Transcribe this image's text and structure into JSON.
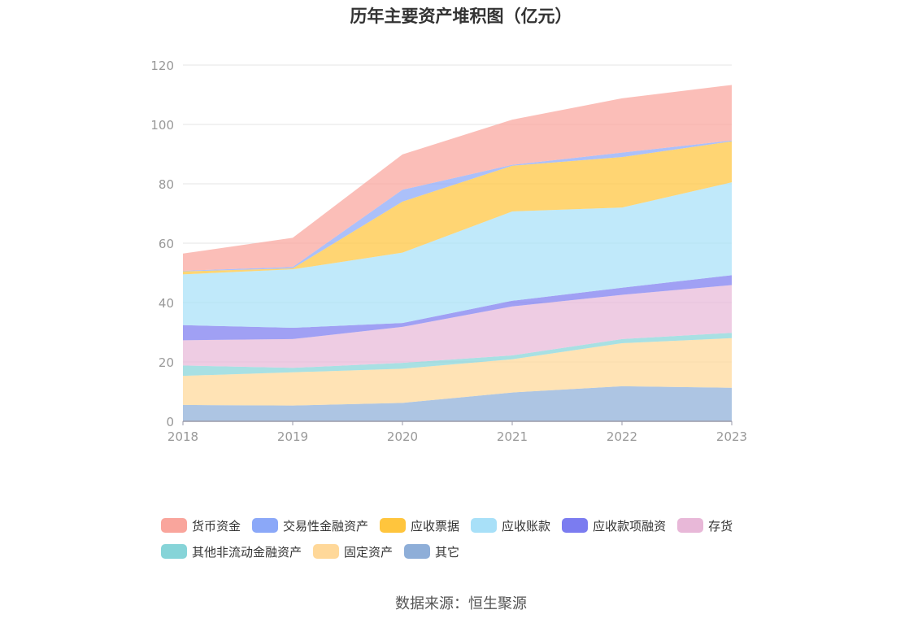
{
  "chart_data": {
    "type": "area",
    "stacked": true,
    "title": "历年主要资产堆积图（亿元）",
    "x": [
      "2018",
      "2019",
      "2020",
      "2021",
      "2022",
      "2023"
    ],
    "ylim": [
      0,
      120
    ],
    "yticks": [
      0,
      20,
      40,
      60,
      80,
      100,
      120
    ],
    "grid": true,
    "legend_position": "bottom",
    "series": [
      {
        "name": "其它",
        "color": "#8eaed8",
        "values": [
          5.5,
          5.3,
          6.2,
          9.7,
          11.8,
          11.3
        ]
      },
      {
        "name": "固定资产",
        "color": "#ffd899",
        "values": [
          9.8,
          11.2,
          11.5,
          11.2,
          14.5,
          16.7
        ]
      },
      {
        "name": "其他非流动金融资产",
        "color": "#86d4d8",
        "values": [
          3.5,
          1.5,
          2.0,
          1.3,
          1.4,
          1.8
        ]
      },
      {
        "name": "存货",
        "color": "#e8b8d8",
        "values": [
          8.5,
          9.7,
          12.1,
          16.5,
          14.9,
          16.1
        ]
      },
      {
        "name": "应收款项融资",
        "color": "#7b7cf0",
        "values": [
          5.1,
          3.8,
          1.3,
          1.9,
          2.4,
          3.3
        ]
      },
      {
        "name": "应收账款",
        "color": "#a8e0f8",
        "values": [
          17.1,
          19.7,
          23.7,
          30.1,
          27.0,
          31.3
        ]
      },
      {
        "name": "应收票据",
        "color": "#ffc53d",
        "values": [
          1.0,
          0.3,
          17.2,
          15.4,
          17.0,
          13.8
        ]
      },
      {
        "name": "交易性金融资产",
        "color": "#8ba8f8",
        "values": [
          0.2,
          0.5,
          4.0,
          0.3,
          1.5,
          0.3
        ]
      },
      {
        "name": "货币资金",
        "color": "#f9a59c",
        "values": [
          5.8,
          9.8,
          11.9,
          15.2,
          18.3,
          18.7
        ]
      }
    ]
  },
  "legend": {
    "row1": [
      {
        "label": "货币资金",
        "color": "#f9a59c"
      },
      {
        "label": "交易性金融资产",
        "color": "#8ba8f8"
      },
      {
        "label": "应收票据",
        "color": "#ffc53d"
      },
      {
        "label": "应收账款",
        "color": "#a8e0f8"
      },
      {
        "label": "应收款项融资",
        "color": "#7b7cf0"
      },
      {
        "label": "存货",
        "color": "#e8b8d8"
      }
    ],
    "row2": [
      {
        "label": "其他非流动金融资产",
        "color": "#86d4d8"
      },
      {
        "label": "固定资产",
        "color": "#ffd899"
      },
      {
        "label": "其它",
        "color": "#8eaed8"
      }
    ]
  },
  "source": "数据来源：恒生聚源"
}
